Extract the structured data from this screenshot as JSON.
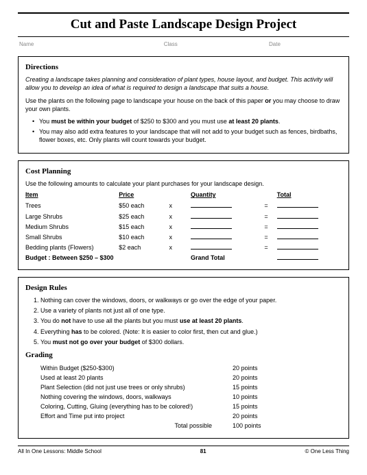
{
  "title": "Cut and Paste Landscape Design Project",
  "meta": {
    "name": "Name",
    "class": "Class",
    "date": "Date"
  },
  "directions": {
    "head": "Directions",
    "intro": "Creating a landscape takes planning and consideration of plant types, house layout, and budget. This activity will allow you to develop an idea of what is required to design a landscape that suits a house.",
    "p2a": "Use the plants on the following page to landscape your house on the back of this paper ",
    "p2_or": "or",
    "p2b": " you may choose to draw your own plants.",
    "b1a": "You ",
    "b1b": "must be within your budget",
    "b1c": " of $250 to $300 and you must use ",
    "b1d": "at least 20 plants",
    "b1e": ".",
    "b2": "You may also add extra features to your landscape that will not add to your budget such as fences, birdbaths, flower boxes, etc. Only plants will count towards your budget."
  },
  "cost": {
    "head": "Cost Planning",
    "intro": "Use the following amounts to calculate your plant purchases for your landscape design.",
    "cols": {
      "item": "Item",
      "price": "Price",
      "qty": "Quantity",
      "total": "Total"
    },
    "rows": [
      {
        "item": "Trees",
        "price": "$50 each"
      },
      {
        "item": "Large Shrubs",
        "price": "$25 each"
      },
      {
        "item": "Medium Shrubs",
        "price": "$15 each"
      },
      {
        "item": "Small Shrubs",
        "price": "$10 each"
      },
      {
        "item": "Bedding plants (Flowers)",
        "price": "$2 each"
      }
    ],
    "budget_label": "Budget : Between $250 – $300",
    "grand_total": "Grand Total"
  },
  "rules": {
    "head": "Design Rules",
    "r1": "Nothing can cover the windows, doors, or walkways or go over the edge of your paper.",
    "r2": "Use a variety of plants not just all of one type.",
    "r3a": "You do ",
    "r3b": "not",
    "r3c": " have to use all the plants but you must ",
    "r3d": "use at least 20 plants",
    "r3e": ".",
    "r4a": "Everything ",
    "r4b": "has",
    "r4c": " to be colored.  (Note: It is easier to color first, then cut and glue.)",
    "r5a": "You ",
    "r5b": "must not go over your budget",
    "r5c": " of $300 dollars."
  },
  "grading": {
    "head": "Grading",
    "items": [
      {
        "label": "Within Budget  ($250-$300)",
        "pts": "20 points"
      },
      {
        "label": "Used at least 20 plants",
        "pts": "20 points"
      },
      {
        "label": "Plant Selection (did not just use trees or only shrubs)",
        "pts": "15 points"
      },
      {
        "label": "Nothing covering the windows, doors, walkways",
        "pts": "10 points"
      },
      {
        "label": "Coloring, Cutting, Gluing (everything has to be colored!)",
        "pts": "15 points"
      },
      {
        "label": "Effort and Time put into project",
        "pts": "20 points"
      }
    ],
    "total_label": "Total possible",
    "total_pts": "100 points"
  },
  "footer": {
    "left": "All In One Lessons: Middle School",
    "page": "81",
    "right": "© One Less Thing"
  }
}
